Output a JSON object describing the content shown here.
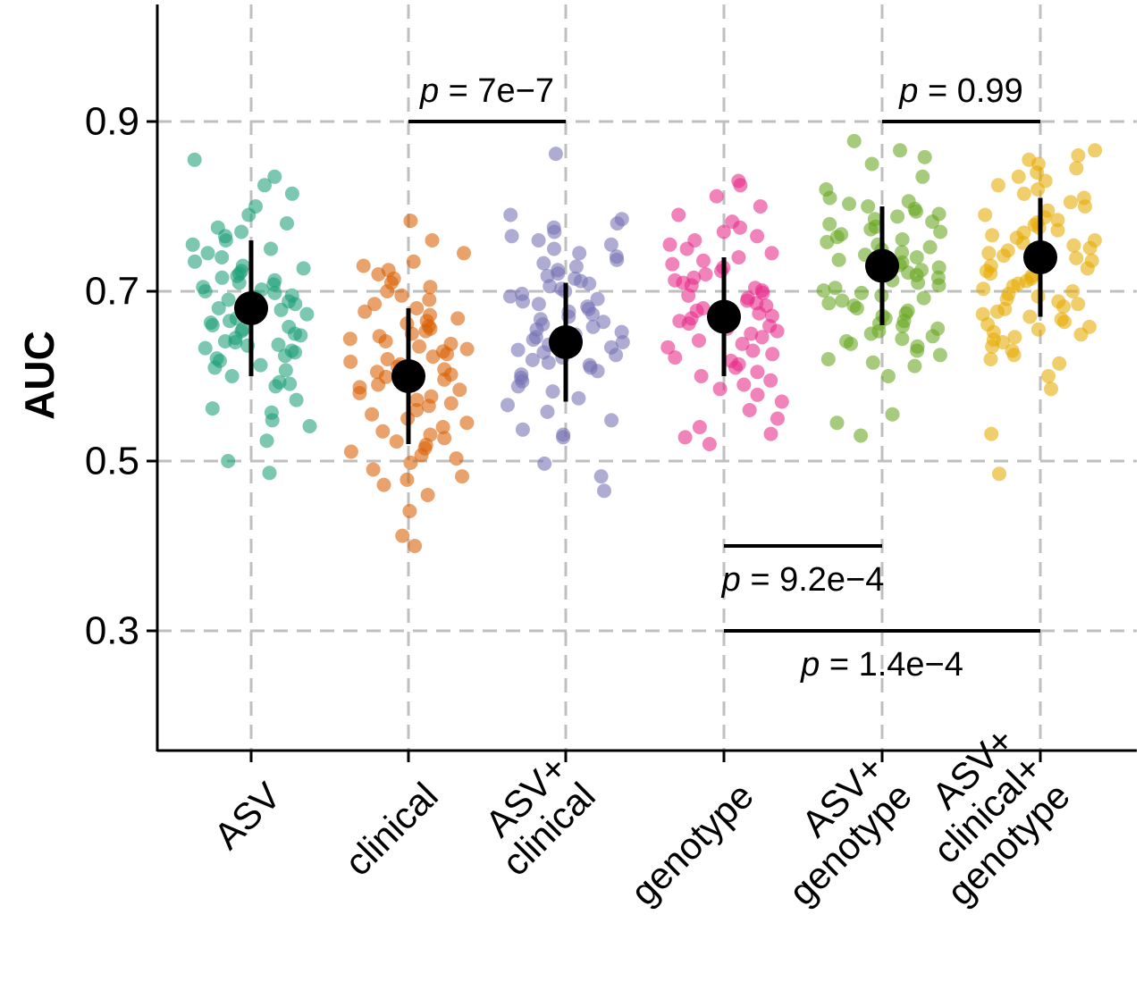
{
  "chart_data": {
    "type": "scatter",
    "title": "",
    "xlabel": "",
    "ylabel": "AUC",
    "ylim": [
      0.16,
      1.03
    ],
    "grid": true,
    "y_ticks": [
      {
        "value": 0.3,
        "label": "0.3"
      },
      {
        "value": 0.5,
        "label": "0.5"
      },
      {
        "value": 0.7,
        "label": "0.7"
      },
      {
        "value": 0.9,
        "label": "0.9"
      }
    ],
    "categories": [
      {
        "key": "ASV",
        "label_lines": [
          "ASV"
        ],
        "color": "#1b9e77",
        "mean": 0.68,
        "lower": 0.6,
        "upper": 0.76
      },
      {
        "key": "clinical",
        "label_lines": [
          "clinical"
        ],
        "color": "#d95f02",
        "mean": 0.6,
        "lower": 0.52,
        "upper": 0.68
      },
      {
        "key": "ASV+clinical",
        "label_lines": [
          "ASV+",
          "clinical"
        ],
        "color": "#7570b3",
        "mean": 0.64,
        "lower": 0.57,
        "upper": 0.71
      },
      {
        "key": "genotype",
        "label_lines": [
          "genotype"
        ],
        "color": "#e7298a",
        "mean": 0.67,
        "lower": 0.6,
        "upper": 0.74
      },
      {
        "key": "ASV+genotype",
        "label_lines": [
          "ASV+",
          "genotype"
        ],
        "color": "#66a61e",
        "mean": 0.73,
        "lower": 0.66,
        "upper": 0.8
      },
      {
        "key": "ASV+clinical+genotype",
        "label_lines": [
          "ASV+",
          "clinical+",
          "genotype"
        ],
        "color": "#e6ab02",
        "mean": 0.74,
        "lower": 0.67,
        "upper": 0.81
      }
    ],
    "points": [
      [
        0.486,
        0.5,
        0.524,
        0.541,
        0.548,
        0.557,
        0.562,
        0.572,
        0.588,
        0.591,
        0.593,
        0.6,
        0.607,
        0.61,
        0.613,
        0.618,
        0.621,
        0.624,
        0.628,
        0.63,
        0.633,
        0.636,
        0.637,
        0.64,
        0.641,
        0.645,
        0.648,
        0.65,
        0.653,
        0.655,
        0.658,
        0.66,
        0.663,
        0.665,
        0.668,
        0.671,
        0.673,
        0.675,
        0.678,
        0.68,
        0.683,
        0.685,
        0.688,
        0.69,
        0.693,
        0.695,
        0.698,
        0.7,
        0.702,
        0.705,
        0.708,
        0.71,
        0.713,
        0.716,
        0.718,
        0.721,
        0.724,
        0.727,
        0.73,
        0.735,
        0.74,
        0.745,
        0.75,
        0.755,
        0.76,
        0.765,
        0.77,
        0.775,
        0.78,
        0.79,
        0.8,
        0.815,
        0.825,
        0.835,
        0.855
      ],
      [
        0.4,
        0.412,
        0.441,
        0.46,
        0.472,
        0.478,
        0.482,
        0.49,
        0.498,
        0.503,
        0.507,
        0.511,
        0.515,
        0.519,
        0.523,
        0.527,
        0.531,
        0.535,
        0.54,
        0.545,
        0.55,
        0.555,
        0.56,
        0.565,
        0.568,
        0.572,
        0.576,
        0.58,
        0.584,
        0.587,
        0.59,
        0.593,
        0.596,
        0.599,
        0.602,
        0.605,
        0.608,
        0.611,
        0.614,
        0.617,
        0.62,
        0.623,
        0.626,
        0.629,
        0.632,
        0.635,
        0.638,
        0.641,
        0.644,
        0.647,
        0.65,
        0.653,
        0.656,
        0.659,
        0.662,
        0.665,
        0.668,
        0.672,
        0.676,
        0.68,
        0.685,
        0.69,
        0.695,
        0.7,
        0.705,
        0.71,
        0.715,
        0.72,
        0.725,
        0.73,
        0.735,
        0.745,
        0.76,
        0.783
      ],
      [
        0.465,
        0.482,
        0.497,
        0.528,
        0.531,
        0.537,
        0.548,
        0.558,
        0.566,
        0.574,
        0.582,
        0.588,
        0.594,
        0.598,
        0.602,
        0.606,
        0.61,
        0.613,
        0.616,
        0.619,
        0.622,
        0.625,
        0.628,
        0.631,
        0.634,
        0.637,
        0.64,
        0.643,
        0.646,
        0.649,
        0.652,
        0.655,
        0.658,
        0.661,
        0.664,
        0.667,
        0.67,
        0.673,
        0.676,
        0.679,
        0.682,
        0.685,
        0.688,
        0.691,
        0.694,
        0.697,
        0.7,
        0.703,
        0.706,
        0.709,
        0.712,
        0.715,
        0.718,
        0.721,
        0.725,
        0.729,
        0.733,
        0.737,
        0.741,
        0.745,
        0.75,
        0.755,
        0.76,
        0.765,
        0.77,
        0.775,
        0.78,
        0.785,
        0.79,
        0.862
      ],
      [
        0.52,
        0.528,
        0.532,
        0.54,
        0.55,
        0.56,
        0.57,
        0.578,
        0.585,
        0.59,
        0.595,
        0.6,
        0.605,
        0.61,
        0.614,
        0.618,
        0.622,
        0.626,
        0.63,
        0.634,
        0.638,
        0.642,
        0.646,
        0.65,
        0.653,
        0.656,
        0.659,
        0.662,
        0.665,
        0.668,
        0.671,
        0.674,
        0.677,
        0.68,
        0.683,
        0.686,
        0.689,
        0.692,
        0.695,
        0.698,
        0.701,
        0.704,
        0.707,
        0.71,
        0.713,
        0.716,
        0.72,
        0.724,
        0.728,
        0.732,
        0.736,
        0.74,
        0.745,
        0.75,
        0.755,
        0.76,
        0.765,
        0.77,
        0.775,
        0.782,
        0.79,
        0.8,
        0.812,
        0.825,
        0.83
      ],
      [
        0.53,
        0.545,
        0.555,
        0.6,
        0.612,
        0.616,
        0.62,
        0.625,
        0.63,
        0.635,
        0.638,
        0.641,
        0.644,
        0.647,
        0.65,
        0.653,
        0.656,
        0.659,
        0.662,
        0.665,
        0.668,
        0.671,
        0.674,
        0.677,
        0.68,
        0.683,
        0.686,
        0.689,
        0.692,
        0.695,
        0.698,
        0.701,
        0.704,
        0.707,
        0.71,
        0.713,
        0.716,
        0.719,
        0.722,
        0.725,
        0.728,
        0.731,
        0.734,
        0.737,
        0.74,
        0.743,
        0.746,
        0.749,
        0.752,
        0.755,
        0.758,
        0.761,
        0.764,
        0.767,
        0.77,
        0.773,
        0.776,
        0.779,
        0.782,
        0.785,
        0.788,
        0.791,
        0.794,
        0.797,
        0.8,
        0.803,
        0.806,
        0.81,
        0.82,
        0.835,
        0.85,
        0.858,
        0.866,
        0.877
      ],
      [
        0.485,
        0.532,
        0.585,
        0.6,
        0.615,
        0.62,
        0.625,
        0.63,
        0.635,
        0.64,
        0.643,
        0.646,
        0.649,
        0.652,
        0.655,
        0.658,
        0.661,
        0.664,
        0.667,
        0.67,
        0.673,
        0.676,
        0.679,
        0.682,
        0.685,
        0.688,
        0.691,
        0.694,
        0.697,
        0.7,
        0.703,
        0.706,
        0.709,
        0.712,
        0.715,
        0.718,
        0.721,
        0.724,
        0.727,
        0.73,
        0.733,
        0.736,
        0.739,
        0.742,
        0.745,
        0.748,
        0.751,
        0.754,
        0.757,
        0.76,
        0.763,
        0.766,
        0.769,
        0.772,
        0.775,
        0.778,
        0.781,
        0.784,
        0.787,
        0.79,
        0.795,
        0.8,
        0.805,
        0.81,
        0.815,
        0.82,
        0.825,
        0.83,
        0.835,
        0.84,
        0.845,
        0.85,
        0.855,
        0.86,
        0.866
      ]
    ],
    "comparisons": [
      {
        "from": "clinical",
        "to": "ASV+clinical",
        "y": 0.9,
        "label_p": "p",
        "label_rest": " = 7e−7",
        "label_pos": "above"
      },
      {
        "from": "ASV+genotype",
        "to": "ASV+clinical+genotype",
        "y": 0.9,
        "label_p": "p",
        "label_rest": " = 0.99",
        "label_pos": "above"
      },
      {
        "from": "genotype",
        "to": "ASV+genotype",
        "y": 0.4,
        "label_p": "p",
        "label_rest": " = 9.2e−4",
        "label_pos": "below"
      },
      {
        "from": "genotype",
        "to": "ASV+clinical+genotype",
        "y": 0.3,
        "label_p": "p",
        "label_rest": " = 1.4e−4",
        "label_pos": "below"
      }
    ]
  }
}
